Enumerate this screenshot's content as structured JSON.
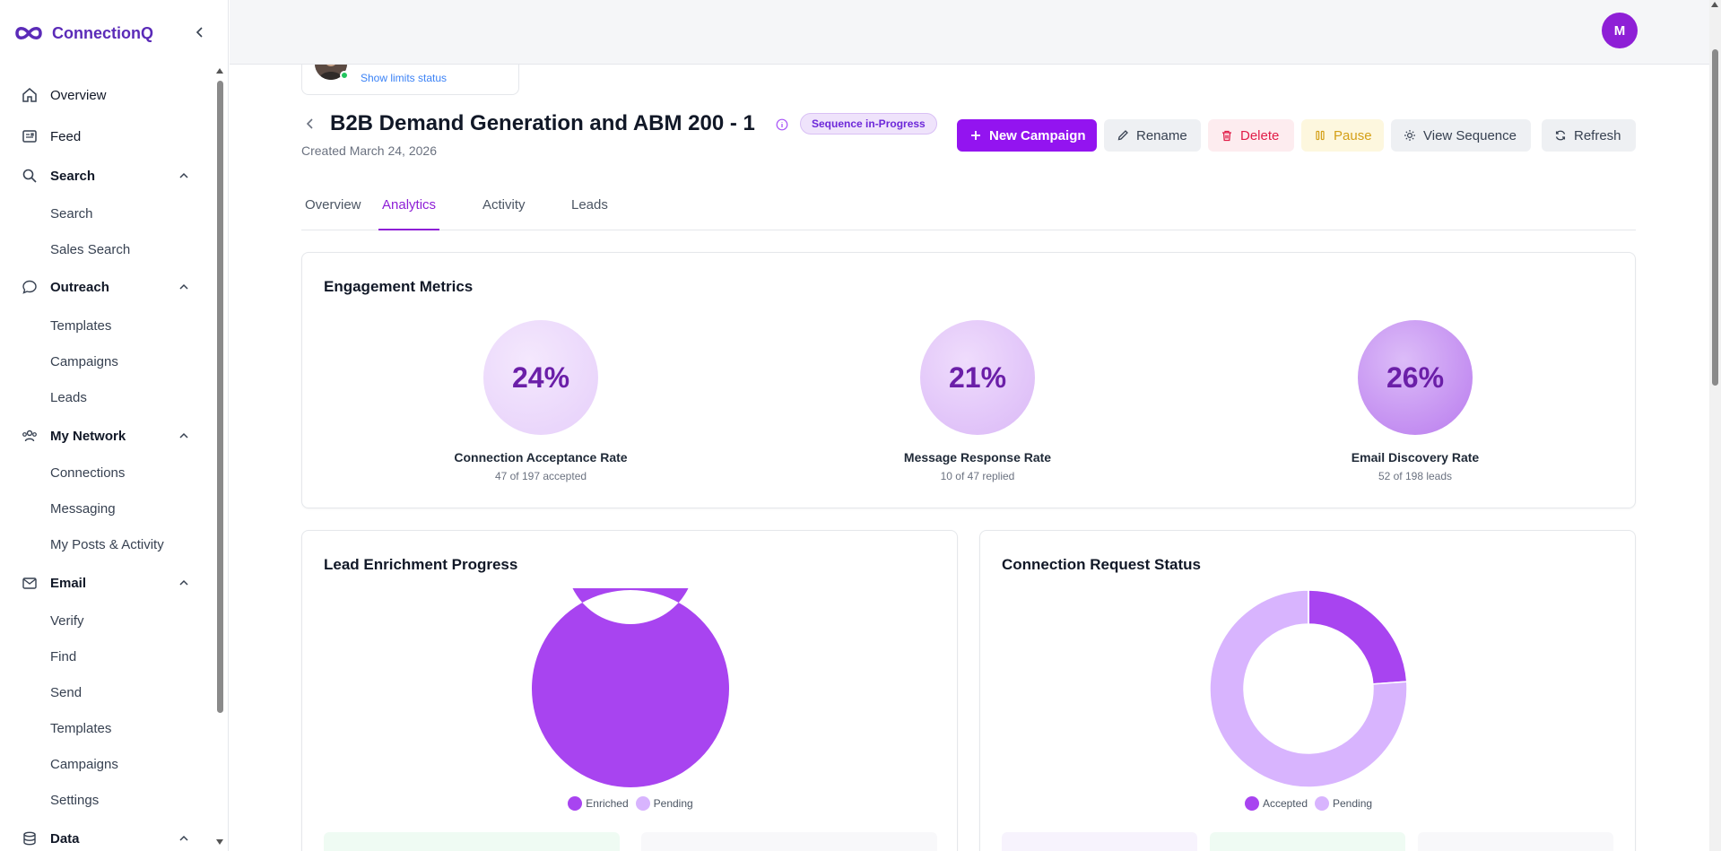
{
  "brand": {
    "name": "ConnectionQ"
  },
  "sidebar": {
    "items": [
      {
        "label": "Overview"
      },
      {
        "label": "Feed"
      },
      {
        "label": "Search",
        "children": [
          "Search",
          "Sales Search"
        ]
      },
      {
        "label": "Outreach",
        "children": [
          "Templates",
          "Campaigns",
          "Leads"
        ]
      },
      {
        "label": "My Network",
        "children": [
          "Connections",
          "Messaging",
          "My Posts & Activity"
        ]
      },
      {
        "label": "Email",
        "children": [
          "Verify",
          "Find",
          "Send",
          "Templates",
          "Campaigns",
          "Settings"
        ]
      },
      {
        "label": "Data"
      }
    ]
  },
  "topbar": {
    "avatar_initial": "M"
  },
  "account": {
    "limits_link": "Show limits status"
  },
  "campaign": {
    "title": "B2B Demand Generation and ABM 200 - 1",
    "status": "Sequence in-Progress",
    "created": "Created March 24, 2026"
  },
  "actions": {
    "new_campaign": "New Campaign",
    "rename": "Rename",
    "delete": "Delete",
    "pause": "Pause",
    "view_sequence": "View Sequence",
    "refresh": "Refresh"
  },
  "tabs": [
    "Overview",
    "Analytics",
    "Activity",
    "Leads"
  ],
  "active_tab": "Analytics",
  "engagement": {
    "title": "Engagement Metrics",
    "metrics": [
      {
        "value": "24%",
        "label": "Connection Acceptance Rate",
        "sub": "47 of 197 accepted"
      },
      {
        "value": "21%",
        "label": "Message Response Rate",
        "sub": "10 of 47 replied"
      },
      {
        "value": "26%",
        "label": "Email Discovery Rate",
        "sub": "52 of 198 leads"
      }
    ]
  },
  "enrichment": {
    "title": "Lead Enrichment Progress",
    "legend": [
      "Enriched",
      "Pending"
    ]
  },
  "connection_status": {
    "title": "Connection Request Status",
    "legend": [
      "Accepted",
      "Pending"
    ]
  },
  "chart_data": [
    {
      "type": "pie",
      "categories": [
        "Enriched",
        "Pending"
      ],
      "values": [
        198,
        0
      ],
      "colors": [
        "#a844f0",
        "#d8b4fe"
      ]
    },
    {
      "type": "pie",
      "categories": [
        "Accepted",
        "Pending"
      ],
      "values": [
        47,
        150
      ],
      "colors": [
        "#a844f0",
        "#d8b4fe"
      ]
    }
  ],
  "colors": {
    "accent": "#9314f0",
    "brand": "#5b2bb8",
    "accepted": "#a844f0",
    "pending": "#d8b4fe"
  }
}
